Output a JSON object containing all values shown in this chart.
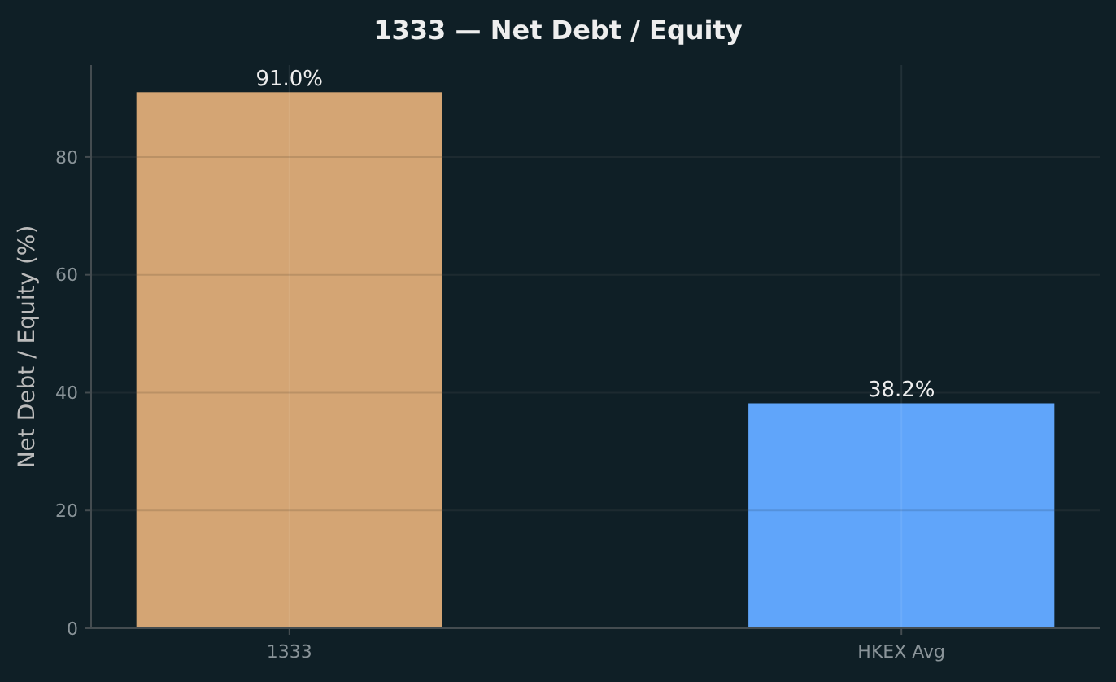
{
  "chart_data": {
    "type": "bar",
    "title": "1333 — Net Debt / Equity",
    "ylabel": "Net Debt / Equity (%)",
    "categories": [
      "1333",
      "HKEX Avg"
    ],
    "values": [
      91.0,
      38.2
    ],
    "colors": [
      "#d4a574",
      "#60a5fa"
    ],
    "value_labels": [
      "91.0%",
      "38.2%"
    ],
    "ylim": [
      0,
      95.6
    ],
    "yticks": [
      0,
      20,
      40,
      60,
      80
    ],
    "grid": true
  }
}
